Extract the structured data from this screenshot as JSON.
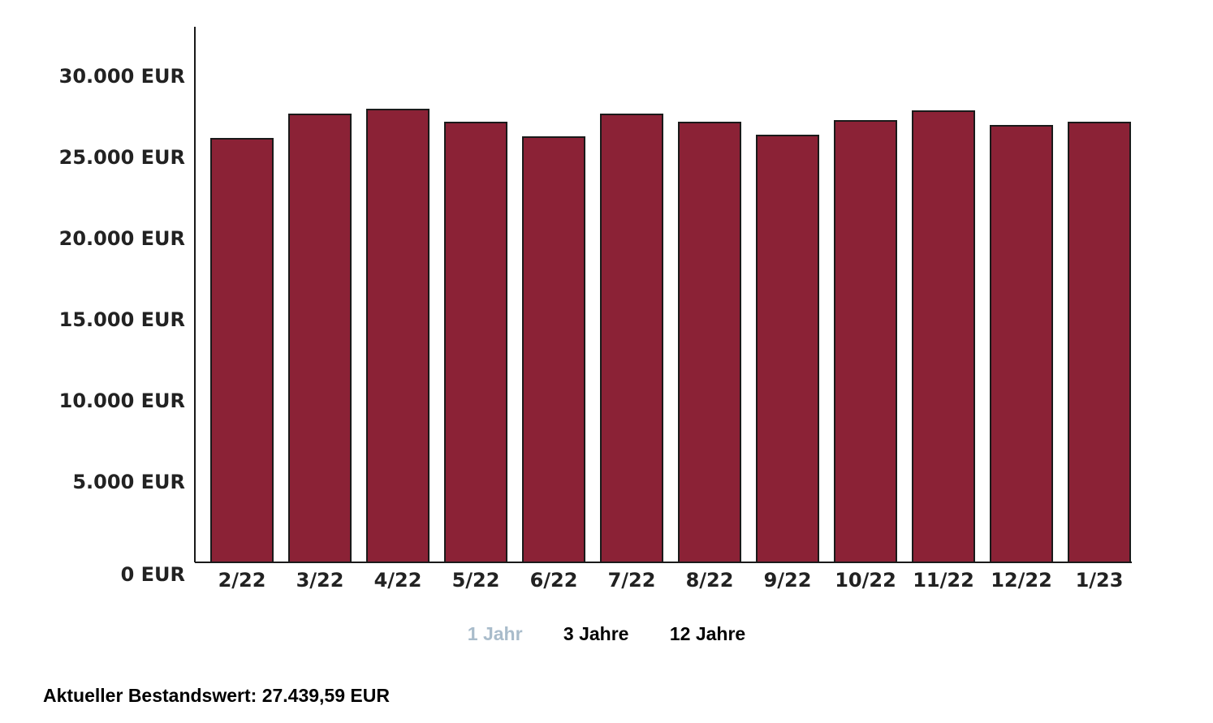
{
  "chart_data": {
    "type": "bar",
    "categories": [
      "2/22",
      "3/22",
      "4/22",
      "5/22",
      "6/22",
      "7/22",
      "8/22",
      "9/22",
      "10/22",
      "11/22",
      "12/22",
      "1/23"
    ],
    "values": [
      26100,
      27600,
      27900,
      27100,
      26200,
      27600,
      27100,
      26300,
      27200,
      27800,
      26900,
      27100
    ],
    "y_ticks": [
      0,
      5000,
      10000,
      15000,
      20000,
      25000,
      30000
    ],
    "y_tick_labels": [
      "0 EUR",
      "5.000 EUR",
      "10.000 EUR",
      "15.000 EUR",
      "20.000 EUR",
      "25.000 EUR",
      "30.000 EUR"
    ],
    "ylim": [
      0,
      33000
    ],
    "title": "",
    "xlabel": "",
    "ylabel": "",
    "grid": false,
    "bar_color": "#8b2236",
    "bar_edge_color": "#1a1a1a"
  },
  "range_selector": {
    "options": [
      {
        "label": "1 Jahr",
        "active": false
      },
      {
        "label": "3 Jahre",
        "active": true
      },
      {
        "label": "12 Jahre",
        "active": true
      }
    ]
  },
  "summary": {
    "label": "Aktueller Bestandswert: 27.439,59 EUR"
  }
}
